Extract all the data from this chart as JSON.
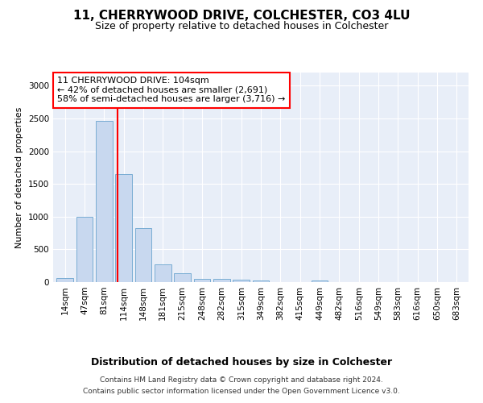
{
  "title_line1": "11, CHERRYWOOD DRIVE, COLCHESTER, CO3 4LU",
  "title_line2": "Size of property relative to detached houses in Colchester",
  "xlabel": "Distribution of detached houses by size in Colchester",
  "ylabel": "Number of detached properties",
  "categories": [
    "14sqm",
    "47sqm",
    "81sqm",
    "114sqm",
    "148sqm",
    "181sqm",
    "215sqm",
    "248sqm",
    "282sqm",
    "315sqm",
    "349sqm",
    "382sqm",
    "415sqm",
    "449sqm",
    "482sqm",
    "516sqm",
    "549sqm",
    "583sqm",
    "616sqm",
    "650sqm",
    "683sqm"
  ],
  "values": [
    58,
    1000,
    2460,
    1650,
    830,
    270,
    135,
    45,
    48,
    43,
    28,
    0,
    0,
    20,
    0,
    0,
    0,
    0,
    0,
    0,
    0
  ],
  "bar_color": "#c8d8ef",
  "bar_edge_color": "#7aadd4",
  "bar_width": 0.85,
  "vline_x": 2.7,
  "vline_color": "red",
  "annotation_text": "11 CHERRYWOOD DRIVE: 104sqm\n← 42% of detached houses are smaller (2,691)\n58% of semi-detached houses are larger (3,716) →",
  "annotation_box_color": "white",
  "annotation_box_edge_color": "red",
  "ylim": [
    0,
    3200
  ],
  "yticks": [
    0,
    500,
    1000,
    1500,
    2000,
    2500,
    3000
  ],
  "footer_line1": "Contains HM Land Registry data © Crown copyright and database right 2024.",
  "footer_line2": "Contains public sector information licensed under the Open Government Licence v3.0.",
  "bg_color": "#ffffff",
  "plot_bg_color": "#e8eef8",
  "grid_color": "#ffffff",
  "title1_fontsize": 11,
  "title2_fontsize": 9,
  "xlabel_fontsize": 9,
  "ylabel_fontsize": 8,
  "tick_fontsize": 7.5,
  "annotation_fontsize": 8
}
